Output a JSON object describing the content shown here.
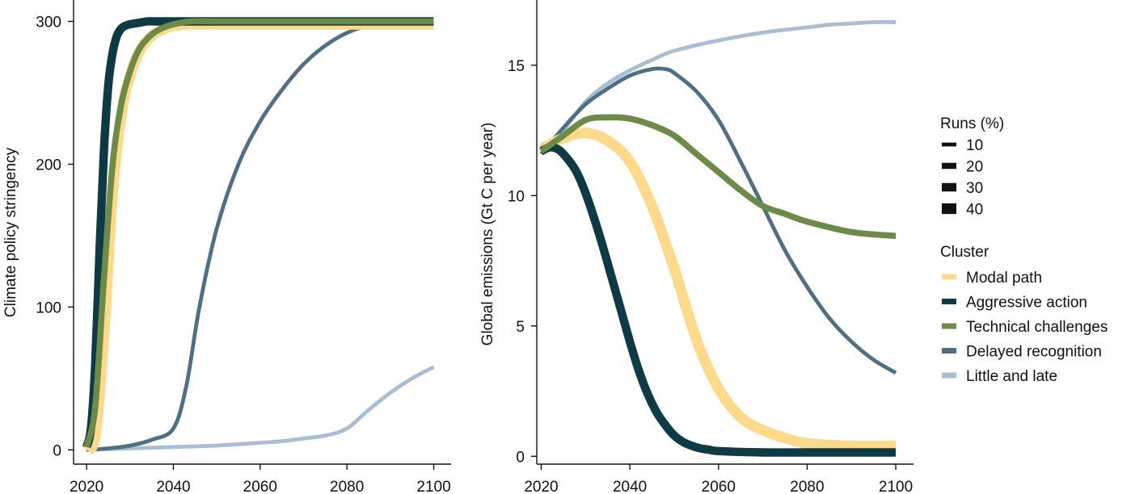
{
  "chart_data": [
    {
      "type": "line",
      "title": "",
      "xlabel": "",
      "ylabel": "Climate policy stringency",
      "xlim": [
        2017,
        2104
      ],
      "ylim": [
        -10,
        315
      ],
      "xticks": [
        2020,
        2040,
        2060,
        2080,
        2100
      ],
      "xtick_labels": [
        "2020",
        "2040",
        "2060",
        "2080",
        "2100"
      ],
      "yticks": [
        0,
        100,
        200,
        300
      ],
      "ytick_labels": [
        "0",
        "100",
        "200",
        "300"
      ],
      "grid": false,
      "series": [
        {
          "name": "Modal path",
          "runs_pct": 40,
          "x": [
            2020,
            2022,
            2024,
            2026,
            2028,
            2030,
            2032,
            2034,
            2036,
            2038,
            2040,
            2044,
            2050,
            2060,
            2080,
            2100
          ],
          "y": [
            0,
            10,
            80,
            180,
            235,
            262,
            278,
            287,
            292,
            295,
            297,
            298,
            298,
            298,
            298,
            298
          ]
        },
        {
          "name": "Aggressive action",
          "runs_pct": 30,
          "x": [
            2020,
            2021,
            2022,
            2023,
            2024,
            2025,
            2026,
            2027,
            2028,
            2029,
            2030,
            2032,
            2034,
            2036,
            2040,
            2050,
            2060,
            2080,
            2100
          ],
          "y": [
            2,
            15,
            60,
            140,
            210,
            255,
            278,
            290,
            295,
            297,
            298,
            299,
            300,
            300,
            300,
            300,
            300,
            300,
            300
          ]
        },
        {
          "name": "Technical challenges",
          "runs_pct": 20,
          "x": [
            2020,
            2022,
            2024,
            2026,
            2028,
            2030,
            2032,
            2034,
            2036,
            2038,
            2040,
            2044,
            2050,
            2060,
            2080,
            2100
          ],
          "y": [
            2,
            30,
            120,
            200,
            242,
            265,
            280,
            288,
            293,
            296,
            298,
            300,
            300,
            300,
            300,
            300
          ]
        },
        {
          "name": "Delayed recognition",
          "runs_pct": 10,
          "x": [
            2020,
            2025,
            2030,
            2035,
            2040,
            2043,
            2046,
            2050,
            2055,
            2060,
            2065,
            2070,
            2075,
            2080,
            2085,
            2090,
            2095,
            2100
          ],
          "y": [
            0,
            1,
            3,
            7,
            15,
            45,
            100,
            155,
            200,
            230,
            252,
            270,
            283,
            292,
            297,
            298,
            298,
            298
          ]
        },
        {
          "name": "Little and late",
          "runs_pct": 10,
          "x": [
            2020,
            2030,
            2040,
            2050,
            2060,
            2065,
            2070,
            2075,
            2080,
            2085,
            2090,
            2095,
            2100
          ],
          "y": [
            0,
            1,
            2,
            3,
            5,
            6,
            8,
            10,
            15,
            28,
            40,
            50,
            58
          ]
        }
      ]
    },
    {
      "type": "line",
      "title": "",
      "xlabel": "",
      "ylabel": "Global emissions (Gt C per year)",
      "xlim": [
        2019,
        2104
      ],
      "ylim": [
        -0.3,
        17.5
      ],
      "xticks": [
        2020,
        2040,
        2060,
        2080,
        2100
      ],
      "xtick_labels": [
        "2020",
        "2040",
        "2060",
        "2080",
        "2100"
      ],
      "yticks": [
        0,
        5,
        10,
        15
      ],
      "ytick_labels": [
        "0",
        "5",
        "10",
        "15"
      ],
      "grid": false,
      "series": [
        {
          "name": "Modal path",
          "runs_pct": 40,
          "x": [
            2020,
            2025,
            2030,
            2035,
            2040,
            2045,
            2050,
            2055,
            2060,
            2065,
            2070,
            2075,
            2080,
            2090,
            2100
          ],
          "y": [
            11.8,
            12.2,
            12.4,
            12.1,
            11.3,
            9.6,
            7.2,
            4.5,
            2.6,
            1.5,
            1.0,
            0.7,
            0.5,
            0.4,
            0.4
          ]
        },
        {
          "name": "Aggressive action",
          "runs_pct": 30,
          "x": [
            2020,
            2022,
            2024,
            2026,
            2028,
            2030,
            2032,
            2034,
            2036,
            2038,
            2040,
            2042,
            2044,
            2046,
            2048,
            2050,
            2052,
            2054,
            2056,
            2058,
            2060,
            2070,
            2080,
            2100
          ],
          "y": [
            11.7,
            11.85,
            11.75,
            11.4,
            10.9,
            10.1,
            9.1,
            8.0,
            6.8,
            5.6,
            4.4,
            3.3,
            2.4,
            1.7,
            1.2,
            0.8,
            0.55,
            0.4,
            0.3,
            0.25,
            0.2,
            0.15,
            0.15,
            0.15
          ]
        },
        {
          "name": "Technical challenges",
          "runs_pct": 20,
          "x": [
            2020,
            2025,
            2030,
            2035,
            2040,
            2045,
            2050,
            2055,
            2060,
            2065,
            2070,
            2075,
            2080,
            2090,
            2100
          ],
          "y": [
            11.7,
            12.3,
            12.9,
            13.0,
            12.95,
            12.7,
            12.3,
            11.6,
            10.9,
            10.2,
            9.6,
            9.3,
            9.0,
            8.6,
            8.45
          ]
        },
        {
          "name": "Delayed recognition",
          "runs_pct": 10,
          "x": [
            2020,
            2025,
            2030,
            2035,
            2040,
            2045,
            2048,
            2050,
            2055,
            2060,
            2065,
            2070,
            2075,
            2080,
            2085,
            2090,
            2095,
            2100
          ],
          "y": [
            11.6,
            12.6,
            13.5,
            14.1,
            14.6,
            14.85,
            14.85,
            14.7,
            14.0,
            12.9,
            11.3,
            9.6,
            7.9,
            6.5,
            5.3,
            4.4,
            3.7,
            3.2
          ]
        },
        {
          "name": "Little and late",
          "runs_pct": 10,
          "x": [
            2020,
            2025,
            2030,
            2035,
            2040,
            2045,
            2050,
            2060,
            2070,
            2080,
            2085,
            2090,
            2095,
            2100
          ],
          "y": [
            11.6,
            12.5,
            13.6,
            14.3,
            14.8,
            15.2,
            15.55,
            15.95,
            16.25,
            16.45,
            16.55,
            16.6,
            16.65,
            16.65
          ]
        }
      ]
    }
  ],
  "legend": {
    "placement": "right",
    "runs": {
      "title": "Runs (%)",
      "items": [
        {
          "label": "10",
          "value": 10
        },
        {
          "label": "20",
          "value": 20
        },
        {
          "label": "30",
          "value": 30
        },
        {
          "label": "40",
          "value": 40
        }
      ]
    },
    "cluster": {
      "title": "Cluster",
      "items": [
        {
          "label": "Modal path",
          "color": "#fdd98b"
        },
        {
          "label": "Aggressive action",
          "color": "#0d3a44"
        },
        {
          "label": "Technical challenges",
          "color": "#6e8a48"
        },
        {
          "label": "Delayed recognition",
          "color": "#4f7084"
        },
        {
          "label": "Little and late",
          "color": "#a8bfd3"
        }
      ]
    }
  }
}
